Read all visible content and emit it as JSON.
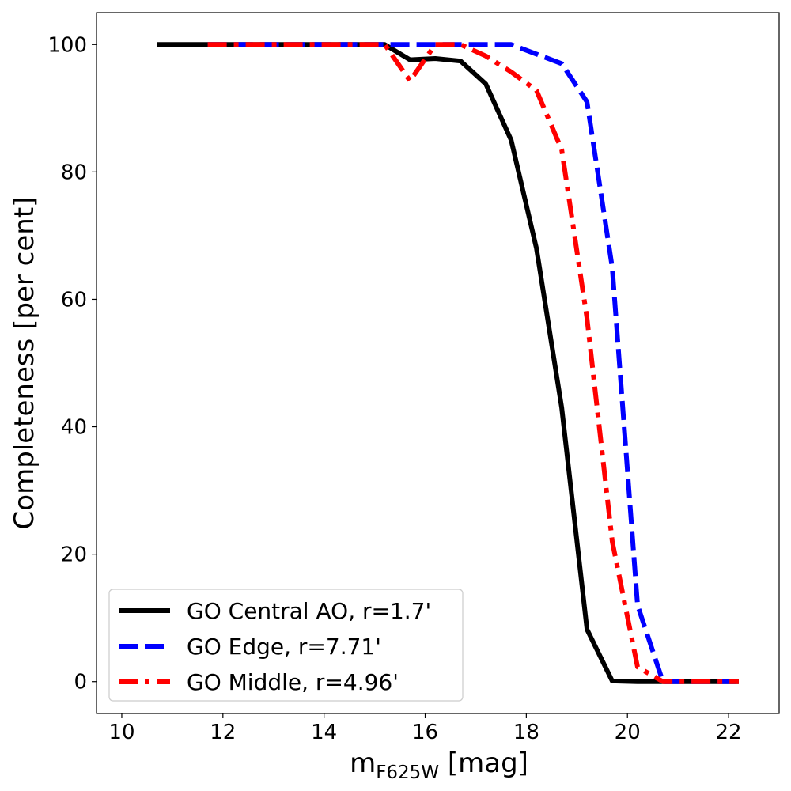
{
  "chart_data": {
    "type": "line",
    "title": "",
    "xlabel_main": "m",
    "xlabel_sub": "F625W",
    "xlabel_unit": " [mag]",
    "ylabel": "Completeness [per cent]",
    "xlim": [
      9.5,
      23.0
    ],
    "ylim": [
      -5,
      105
    ],
    "xticks": [
      10,
      12,
      14,
      16,
      18,
      20,
      22
    ],
    "yticks": [
      0,
      20,
      40,
      60,
      80,
      100
    ],
    "grid": false,
    "legend_position": "lower-left",
    "series": [
      {
        "name": "GO Central AO, r=1.7'",
        "color": "#000000",
        "style": "solid",
        "x": [
          10.7,
          11.2,
          11.7,
          12.2,
          12.7,
          13.2,
          13.7,
          14.2,
          14.7,
          15.2,
          15.7,
          16.2,
          16.7,
          17.2,
          17.7,
          18.2,
          18.7,
          19.2,
          19.7,
          20.2,
          20.7,
          21.2,
          21.7,
          22.2
        ],
        "y": [
          100,
          100,
          100,
          100,
          100,
          100,
          100,
          100,
          100,
          100,
          97.6,
          97.8,
          97.4,
          93.8,
          85,
          68,
          43,
          8.2,
          0.1,
          0,
          0,
          0,
          0,
          0
        ]
      },
      {
        "name": "GO Edge, r=7.71'",
        "color": "#0000ff",
        "style": "dashed",
        "x": [
          11.7,
          12.2,
          12.7,
          13.2,
          13.7,
          14.2,
          14.7,
          15.2,
          15.7,
          16.2,
          16.7,
          17.2,
          17.7,
          18.2,
          18.7,
          19.2,
          19.7,
          20.2,
          20.7,
          21.2,
          21.7,
          22.2
        ],
        "y": [
          100,
          100,
          100,
          100,
          100,
          100,
          100,
          100,
          100,
          100,
          100,
          100,
          100,
          98.5,
          97,
          91,
          65,
          12,
          0,
          0,
          0,
          0
        ]
      },
      {
        "name": "GO Middle, r=4.96'",
        "color": "#ff0000",
        "style": "dashdot",
        "x": [
          11.7,
          12.2,
          12.7,
          13.2,
          13.7,
          14.2,
          14.7,
          15.2,
          15.7,
          16.2,
          16.7,
          17.2,
          17.7,
          18.2,
          18.7,
          19.2,
          19.7,
          20.2,
          20.7,
          21.2,
          21.7,
          22.2
        ],
        "y": [
          100,
          100,
          100,
          100,
          100,
          100,
          100,
          100,
          94.3,
          100,
          100,
          98.2,
          95.7,
          92.8,
          83.5,
          57,
          22,
          2.3,
          0,
          0,
          0,
          0
        ]
      }
    ]
  }
}
